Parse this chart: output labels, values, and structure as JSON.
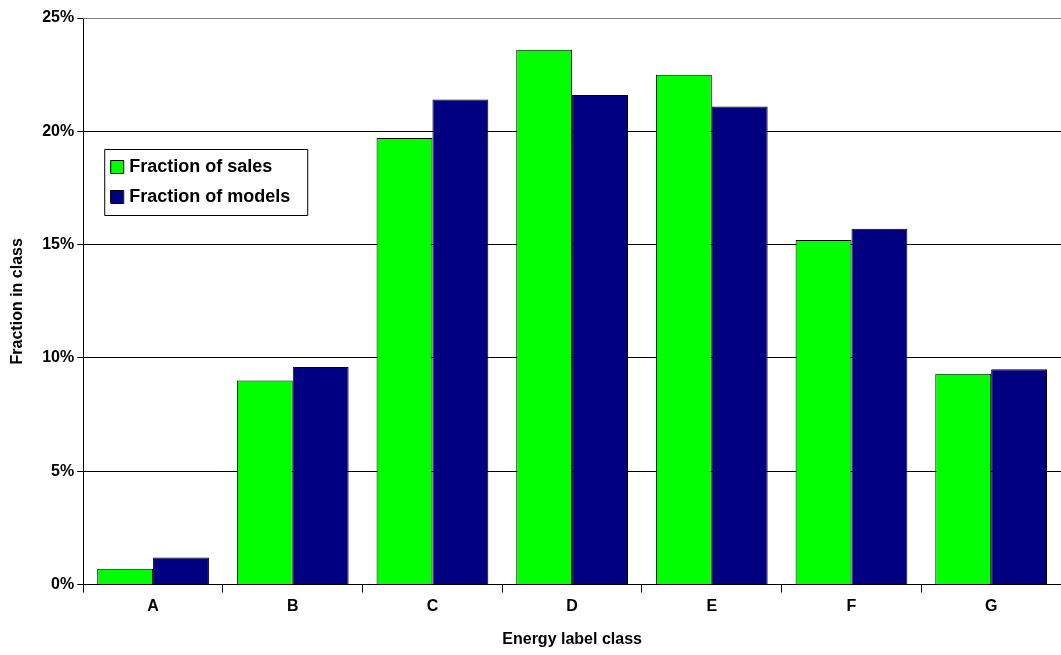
{
  "chart_data": {
    "type": "bar",
    "xlabel": "Energy label class",
    "ylabel": "Fraction in class",
    "categories": [
      "A",
      "B",
      "C",
      "D",
      "E",
      "F",
      "G"
    ],
    "series": [
      {
        "name": "Fraction of sales",
        "color": "#00ff00",
        "values": [
          0.7,
          9.0,
          19.7,
          23.6,
          22.5,
          15.2,
          9.3
        ]
      },
      {
        "name": "Fraction of models",
        "color": "#000080",
        "values": [
          1.2,
          9.6,
          21.4,
          21.6,
          21.1,
          15.7,
          9.5
        ]
      }
    ],
    "ylim": [
      0,
      25
    ],
    "yticks": [
      {
        "value": 0,
        "label": "0%"
      },
      {
        "value": 5,
        "label": "5%"
      },
      {
        "value": 10,
        "label": "10%"
      },
      {
        "value": 15,
        "label": "15%"
      },
      {
        "value": 20,
        "label": "20%"
      },
      {
        "value": 25,
        "label": "25%"
      }
    ],
    "grid": "y",
    "legend": "left"
  }
}
